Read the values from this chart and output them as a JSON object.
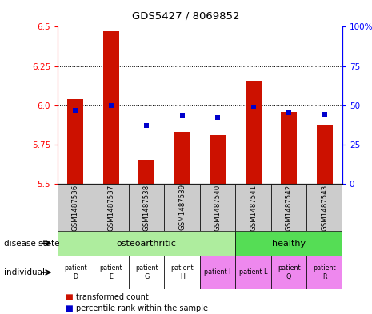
{
  "title": "GDS5427 / 8069852",
  "samples": [
    "GSM1487536",
    "GSM1487537",
    "GSM1487538",
    "GSM1487539",
    "GSM1487540",
    "GSM1487541",
    "GSM1487542",
    "GSM1487543"
  ],
  "red_values": [
    6.04,
    6.47,
    5.65,
    5.83,
    5.81,
    6.15,
    5.96,
    5.87
  ],
  "blue_values_pct": [
    47,
    50,
    37,
    43,
    42,
    49,
    45,
    44
  ],
  "ylim": [
    5.5,
    6.5
  ],
  "yticks": [
    5.5,
    5.75,
    6.0,
    6.25,
    6.5
  ],
  "right_yticks": [
    0,
    25,
    50,
    75,
    100
  ],
  "right_ylim": [
    0,
    100
  ],
  "disease_state_groups": [
    {
      "label": "osteoarthritic",
      "start": 0,
      "end": 5,
      "color": "#aeed9e"
    },
    {
      "label": "healthy",
      "start": 5,
      "end": 8,
      "color": "#55dd55"
    }
  ],
  "individual_labels": [
    "patient\nD",
    "patient\nE",
    "patient\nG",
    "patient\nH",
    "patient I",
    "patient L",
    "patient\nQ",
    "patient\nR"
  ],
  "individual_colors": [
    "#ffffff",
    "#ffffff",
    "#ffffff",
    "#ffffff",
    "#ee88ee",
    "#ee88ee",
    "#ee88ee",
    "#ee88ee"
  ],
  "bar_color": "#cc1100",
  "dot_color": "#0000cc",
  "background_color": "#ffffff",
  "label_area_color": "#cccccc",
  "tick_fontsize": 7.5,
  "bar_width": 0.45
}
